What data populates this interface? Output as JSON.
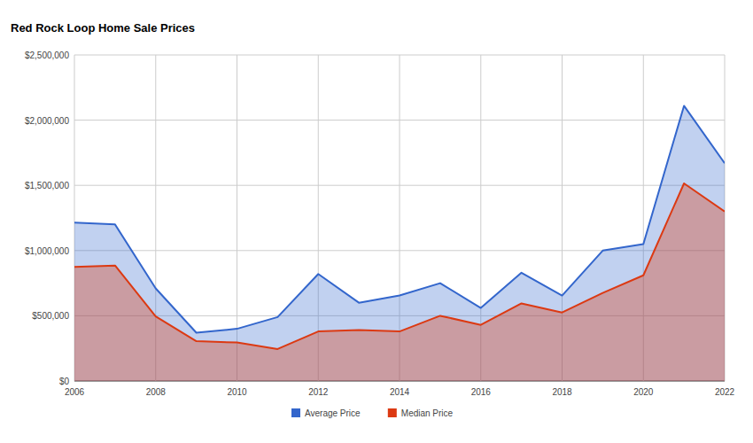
{
  "chart_data": {
    "type": "area",
    "title": "Red Rock Loop Home Sale Prices",
    "x": [
      2006,
      2007,
      2008,
      2009,
      2010,
      2011,
      2012,
      2013,
      2014,
      2015,
      2016,
      2017,
      2018,
      2019,
      2020,
      2021,
      2022
    ],
    "series": [
      {
        "name": "Average Price",
        "color": "#3366cc",
        "values": [
          1215000,
          1200000,
          710000,
          370000,
          400000,
          490000,
          820000,
          600000,
          655000,
          750000,
          560000,
          830000,
          655000,
          1000000,
          1050000,
          2110000,
          1670000
        ]
      },
      {
        "name": "Median Price",
        "color": "#dc3912",
        "values": [
          875000,
          885000,
          495000,
          305000,
          295000,
          245000,
          380000,
          390000,
          380000,
          500000,
          430000,
          595000,
          525000,
          675000,
          810000,
          1515000,
          1300000
        ]
      }
    ],
    "xlim": [
      2006,
      2022
    ],
    "xticks": [
      2006,
      2008,
      2010,
      2012,
      2014,
      2016,
      2018,
      2020,
      2022
    ],
    "ylim": [
      0,
      2500000
    ],
    "yticks": [
      {
        "value": 0,
        "label": "$0"
      },
      {
        "value": 500000,
        "label": "$500,000"
      },
      {
        "value": 1000000,
        "label": "$1,000,000"
      },
      {
        "value": 1500000,
        "label": "$1,500,000"
      },
      {
        "value": 2000000,
        "label": "$2,000,000"
      },
      {
        "value": 2500000,
        "label": "$2,500,000"
      }
    ],
    "grid": true,
    "legend": "bottom"
  }
}
